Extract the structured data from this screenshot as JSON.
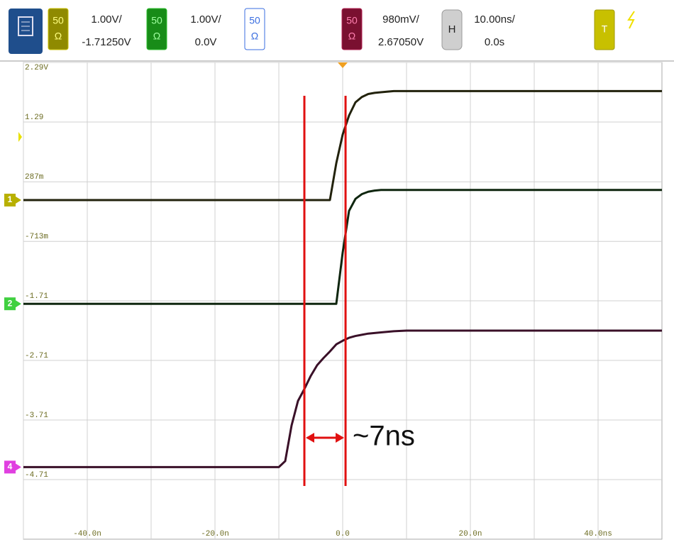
{
  "toolbar": {
    "channels": [
      {
        "impedance": "50",
        "unit": "Ω",
        "scale": "1.00V/",
        "offset": "-1.71250V"
      },
      {
        "impedance": "50",
        "unit": "Ω",
        "scale": "1.00V/",
        "offset": "0.0V"
      },
      {
        "impedance": "50",
        "unit": "Ω"
      },
      {
        "impedance": "50",
        "unit": "Ω",
        "scale": "980mV/",
        "offset": "2.67050V"
      }
    ],
    "horizontal": {
      "label": "H",
      "scale": "10.00ns/",
      "delay": "0.0s"
    },
    "trigger": "T"
  },
  "chart_data": {
    "type": "line",
    "x": [
      -50,
      -10,
      -9,
      -8,
      -7,
      -6,
      -5,
      -4,
      -3,
      -2,
      -1,
      0,
      1,
      2,
      3,
      4,
      5,
      6,
      8,
      10,
      15,
      20,
      30,
      40,
      50
    ],
    "xlim": [
      -50,
      50
    ],
    "xticks": [
      {
        "value": -50,
        "label": null
      },
      {
        "value": -40,
        "label": "-40.0n"
      },
      {
        "value": -30,
        "label": null
      },
      {
        "value": -20,
        "label": "-20.0n"
      },
      {
        "value": -10,
        "label": null
      },
      {
        "value": 0,
        "label": "0.0"
      },
      {
        "value": 10,
        "label": null
      },
      {
        "value": 20,
        "label": "20.0n"
      },
      {
        "value": 30,
        "label": null
      },
      {
        "value": 40,
        "label": "40.0ns"
      }
    ],
    "ylim": [
      -5.71,
      2.29
    ],
    "yticks": [
      {
        "value": 2.29,
        "label": "2.29V"
      },
      1.29,
      {
        "value": 0.287,
        "label": "287m"
      },
      {
        "value": -0.713,
        "label": "-713m"
      },
      -1.71,
      -2.71,
      -3.71,
      -4.71
    ],
    "grid": true,
    "series": [
      {
        "name": "1",
        "color": "#22220c",
        "tag_color": "#b8b000",
        "values": [
          -0.02,
          -0.02,
          -0.02,
          -0.02,
          -0.02,
          -0.02,
          -0.02,
          -0.02,
          -0.02,
          -0.02,
          0.6,
          1.08,
          1.4,
          1.62,
          1.71,
          1.76,
          1.78,
          1.79,
          1.81,
          1.81,
          1.81,
          1.81,
          1.81,
          1.81,
          1.81
        ]
      },
      {
        "name": "2",
        "color": "#0f260f",
        "tag_color": "#40d040",
        "values": [
          -1.76,
          -1.76,
          -1.76,
          -1.76,
          -1.76,
          -1.76,
          -1.76,
          -1.76,
          -1.76,
          -1.76,
          -1.76,
          -0.9,
          -0.2,
          0.0,
          0.08,
          0.12,
          0.14,
          0.15,
          0.15,
          0.15,
          0.15,
          0.15,
          0.15,
          0.15,
          0.15
        ]
      },
      {
        "name": "4",
        "color": "#3a1028",
        "tag_color": "#e040e0",
        "values": [
          -4.5,
          -4.5,
          -4.4,
          -3.8,
          -3.39,
          -3.19,
          -2.97,
          -2.79,
          -2.67,
          -2.56,
          -2.44,
          -2.38,
          -2.33,
          -2.3,
          -2.28,
          -2.26,
          -2.25,
          -2.24,
          -2.22,
          -2.21,
          -2.21,
          -2.21,
          -2.21,
          -2.21,
          -2.21
        ]
      }
    ],
    "cursors": {
      "values": [
        -6,
        0.45
      ],
      "color": "#e01010",
      "label": "~7ns"
    }
  }
}
